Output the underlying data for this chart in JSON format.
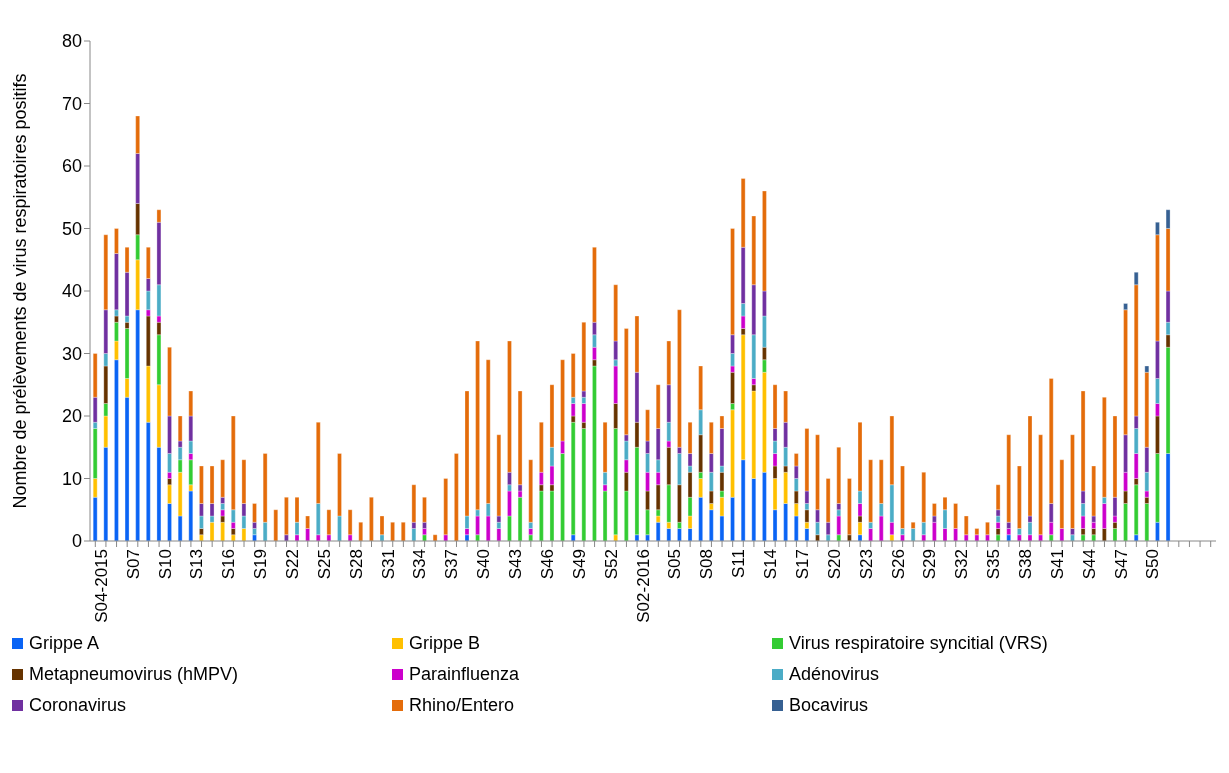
{
  "chart_data": {
    "type": "bar",
    "stacked": true,
    "ylabel": "Nombre de prélèvements de virus respiratoires positifs",
    "ylim": [
      0,
      80
    ],
    "yticks": [
      0,
      10,
      20,
      30,
      40,
      50,
      60,
      70,
      80
    ],
    "grid": false,
    "legend": "bottom",
    "categories": [
      "S04-2015",
      null,
      null,
      "S07",
      null,
      null,
      "S10",
      null,
      null,
      "S13",
      null,
      null,
      "S16",
      null,
      null,
      "S19",
      null,
      null,
      "S22",
      null,
      null,
      "S25",
      null,
      null,
      "S28",
      null,
      null,
      "S31",
      null,
      null,
      "S34",
      null,
      null,
      "S37",
      null,
      null,
      "S40",
      null,
      null,
      "S43",
      null,
      null,
      "S46",
      null,
      null,
      "S49",
      null,
      null,
      "S52",
      null,
      null,
      "S02-2016",
      null,
      null,
      "S05",
      null,
      null,
      "S08",
      null,
      null,
      "S11",
      null,
      null,
      "S14",
      null,
      null,
      "S17",
      null,
      null,
      "S20",
      null,
      null,
      "S23",
      null,
      null,
      "S26",
      null,
      null,
      "S29",
      null,
      null,
      "S32",
      null,
      null,
      "S35",
      null,
      null,
      "S38",
      null,
      null,
      "S41",
      null,
      null,
      "S44",
      null,
      null,
      "S47",
      null,
      null,
      "S50",
      null,
      null,
      null,
      null,
      null,
      null
    ],
    "series": [
      {
        "name": "Grippe A",
        "color": "#0a64f5",
        "values": [
          7,
          15,
          29,
          23,
          37,
          19,
          15,
          6,
          4,
          8,
          0,
          0,
          0,
          0,
          0,
          1,
          0,
          0,
          0,
          0,
          0,
          0,
          0,
          0,
          0,
          0,
          0,
          0,
          0,
          0,
          0,
          0,
          0,
          0,
          0,
          1,
          0,
          0,
          0,
          0,
          0,
          0,
          0,
          0,
          0,
          1,
          0,
          0,
          0,
          0,
          0,
          1,
          1,
          3,
          2,
          2,
          2,
          7,
          5,
          4,
          7,
          13,
          10,
          11,
          5,
          6,
          4,
          2,
          0,
          0,
          0,
          0,
          1,
          0,
          0,
          0,
          0,
          0,
          0,
          0,
          0,
          0,
          0,
          0,
          0,
          0,
          1,
          0,
          0,
          0,
          0,
          0,
          0,
          0,
          0,
          0,
          0,
          0,
          1,
          0,
          3,
          14,
          null,
          null,
          null,
          null
        ]
      },
      {
        "name": "Grippe B",
        "color": "#ffc000",
        "values": [
          3,
          5,
          3,
          3,
          8,
          9,
          10,
          3,
          7,
          1,
          1,
          3,
          3,
          1,
          2,
          0,
          0,
          0,
          0,
          0,
          0,
          0,
          0,
          0,
          0,
          0,
          0,
          0,
          0,
          0,
          0,
          0,
          0,
          0,
          0,
          0,
          0,
          0,
          0,
          0,
          0,
          0,
          0,
          0,
          0,
          0,
          0,
          0,
          0,
          1,
          0,
          0,
          0,
          1,
          1,
          0,
          2,
          3,
          1,
          3,
          14,
          20,
          14,
          16,
          5,
          5,
          2,
          1,
          0,
          0,
          0,
          0,
          2,
          0,
          0,
          1,
          0,
          0,
          0,
          0,
          0,
          0,
          0,
          0,
          0,
          0,
          0,
          0,
          0,
          0,
          0,
          0,
          0,
          0,
          0,
          0,
          0,
          0,
          0,
          0,
          0,
          0,
          null,
          null,
          null,
          null
        ]
      },
      {
        "name": "Virus respiratoire syncitial (VRS)",
        "color": "#33cc33",
        "values": [
          8,
          2,
          3,
          8,
          4,
          0,
          8,
          0,
          2,
          4,
          0,
          0,
          0,
          0,
          0,
          0,
          0,
          0,
          0,
          0,
          0,
          0,
          0,
          0,
          0,
          0,
          0,
          0,
          0,
          0,
          0,
          1,
          0,
          0,
          0,
          0,
          1,
          0,
          0,
          4,
          7,
          1,
          8,
          8,
          14,
          18,
          18,
          28,
          8,
          17,
          8,
          14,
          4,
          1,
          6,
          1,
          3,
          1,
          0,
          1,
          1,
          0,
          0,
          2,
          0,
          0,
          0,
          0,
          0,
          0,
          1,
          0,
          0,
          0,
          0,
          0,
          0,
          0,
          0,
          0,
          0,
          0,
          0,
          0,
          0,
          1,
          0,
          0,
          0,
          0,
          1,
          0,
          0,
          1,
          1,
          0,
          2,
          6,
          8,
          6,
          11,
          17,
          null,
          null,
          null,
          null
        ]
      },
      {
        "name": "Metapneumovirus (hMPV)",
        "color": "#663300",
        "values": [
          0,
          6,
          1,
          1,
          5,
          8,
          2,
          1,
          0,
          0,
          1,
          0,
          1,
          1,
          0,
          0,
          0,
          0,
          0,
          0,
          0,
          0,
          0,
          0,
          0,
          0,
          0,
          0,
          0,
          0,
          0,
          0,
          0,
          0,
          0,
          0,
          0,
          0,
          0,
          0,
          0,
          0,
          1,
          1,
          0,
          1,
          1,
          1,
          0,
          4,
          3,
          4,
          3,
          4,
          6,
          6,
          4,
          6,
          2,
          3,
          5,
          1,
          1,
          2,
          2,
          1,
          2,
          2,
          1,
          0,
          0,
          1,
          1,
          0,
          0,
          0,
          0,
          0,
          0,
          0,
          0,
          0,
          0,
          0,
          0,
          1,
          0,
          0,
          0,
          0,
          0,
          0,
          0,
          1,
          1,
          2,
          1,
          2,
          1,
          1,
          6,
          2,
          null,
          null,
          null,
          null
        ]
      },
      {
        "name": "Parainfluenza",
        "color": "#cc00cc",
        "values": [
          0,
          0,
          0,
          0,
          0,
          1,
          1,
          1,
          0,
          1,
          0,
          0,
          1,
          1,
          0,
          0,
          0,
          0,
          0,
          1,
          2,
          1,
          1,
          0,
          1,
          0,
          0,
          0,
          0,
          0,
          0,
          1,
          0,
          1,
          0,
          1,
          3,
          4,
          2,
          4,
          1,
          1,
          2,
          3,
          2,
          2,
          3,
          2,
          1,
          6,
          2,
          0,
          3,
          2,
          1,
          0,
          0,
          0,
          0,
          0,
          1,
          2,
          1,
          0,
          2,
          0,
          0,
          0,
          0,
          0,
          3,
          0,
          2,
          2,
          4,
          2,
          1,
          0,
          1,
          3,
          2,
          2,
          1,
          1,
          1,
          1,
          1,
          1,
          1,
          1,
          2,
          2,
          0,
          2,
          1,
          4,
          1,
          3,
          4,
          1,
          2,
          0,
          null,
          null,
          null,
          null
        ]
      },
      {
        "name": "Adénovirus",
        "color": "#4bacc6",
        "values": [
          1,
          2,
          1,
          1,
          0,
          3,
          5,
          3,
          2,
          2,
          2,
          1,
          1,
          2,
          2,
          1,
          3,
          0,
          0,
          2,
          0,
          5,
          0,
          4,
          0,
          0,
          0,
          1,
          0,
          0,
          2,
          0,
          0,
          0,
          0,
          2,
          1,
          2,
          1,
          1,
          0,
          1,
          0,
          3,
          0,
          1,
          1,
          2,
          2,
          1,
          3,
          0,
          3,
          2,
          3,
          5,
          1,
          4,
          3,
          1,
          2,
          2,
          7,
          5,
          2,
          3,
          2,
          1,
          2,
          1,
          1,
          0,
          2,
          1,
          2,
          6,
          1,
          2,
          2,
          0,
          3,
          0,
          0,
          0,
          0,
          1,
          0,
          1,
          2,
          0,
          0,
          0,
          1,
          2,
          0,
          1,
          0,
          0,
          4,
          3,
          4,
          2,
          null,
          null,
          null,
          null
        ]
      },
      {
        "name": "Coronavirus",
        "color": "#7030a0",
        "values": [
          4,
          7,
          9,
          7,
          8,
          2,
          10,
          6,
          1,
          4,
          2,
          2,
          1,
          0,
          2,
          1,
          0,
          0,
          1,
          0,
          0,
          0,
          0,
          0,
          0,
          0,
          0,
          0,
          0,
          0,
          1,
          1,
          0,
          0,
          0,
          0,
          0,
          0,
          1,
          2,
          1,
          0,
          0,
          0,
          0,
          0,
          1,
          2,
          0,
          3,
          1,
          8,
          2,
          5,
          6,
          1,
          2,
          0,
          3,
          6,
          3,
          9,
          8,
          4,
          2,
          4,
          2,
          2,
          2,
          2,
          1,
          0,
          0,
          0,
          0,
          0,
          0,
          0,
          0,
          1,
          0,
          0,
          0,
          0,
          0,
          1,
          1,
          0,
          1,
          0,
          3,
          0,
          1,
          2,
          1,
          0,
          3,
          6,
          2,
          4,
          6,
          5,
          null,
          null,
          null,
          null
        ]
      },
      {
        "name": "Rhino/Entero",
        "color": "#e46c0a",
        "values": [
          7,
          12,
          4,
          4,
          6,
          5,
          2,
          11,
          4,
          4,
          6,
          6,
          6,
          15,
          7,
          3,
          11,
          5,
          6,
          4,
          2,
          13,
          4,
          10,
          4,
          3,
          7,
          3,
          3,
          3,
          6,
          4,
          1,
          9,
          14,
          20,
          27,
          23,
          13,
          21,
          15,
          10,
          8,
          10,
          13,
          7,
          11,
          12,
          8,
          9,
          17,
          9,
          5,
          7,
          7,
          22,
          5,
          7,
          5,
          2,
          17,
          11,
          11,
          16,
          7,
          5,
          2,
          10,
          12,
          7,
          9,
          9,
          11,
          10,
          7,
          11,
          10,
          1,
          8,
          2,
          2,
          4,
          3,
          1,
          2,
          4,
          14,
          10,
          16,
          16,
          20,
          11,
          15,
          16,
          8,
          16,
          13,
          20,
          21,
          12,
          17,
          10,
          null,
          null,
          null,
          null
        ]
      },
      {
        "name": "Bocavirus",
        "color": "#366092",
        "values": [
          0,
          0,
          0,
          0,
          0,
          0,
          0,
          0,
          0,
          0,
          0,
          0,
          0,
          0,
          0,
          0,
          0,
          0,
          0,
          0,
          0,
          0,
          0,
          0,
          0,
          0,
          0,
          0,
          0,
          0,
          0,
          0,
          0,
          0,
          0,
          0,
          0,
          0,
          0,
          0,
          0,
          0,
          0,
          0,
          0,
          0,
          0,
          0,
          0,
          0,
          0,
          0,
          0,
          0,
          0,
          0,
          0,
          0,
          0,
          0,
          0,
          0,
          0,
          0,
          0,
          0,
          0,
          0,
          0,
          0,
          0,
          0,
          0,
          0,
          0,
          0,
          0,
          0,
          0,
          0,
          0,
          0,
          0,
          0,
          0,
          0,
          0,
          0,
          0,
          0,
          0,
          0,
          0,
          0,
          0,
          0,
          0,
          1,
          2,
          1,
          2,
          3,
          null,
          null,
          null,
          null
        ]
      }
    ]
  }
}
